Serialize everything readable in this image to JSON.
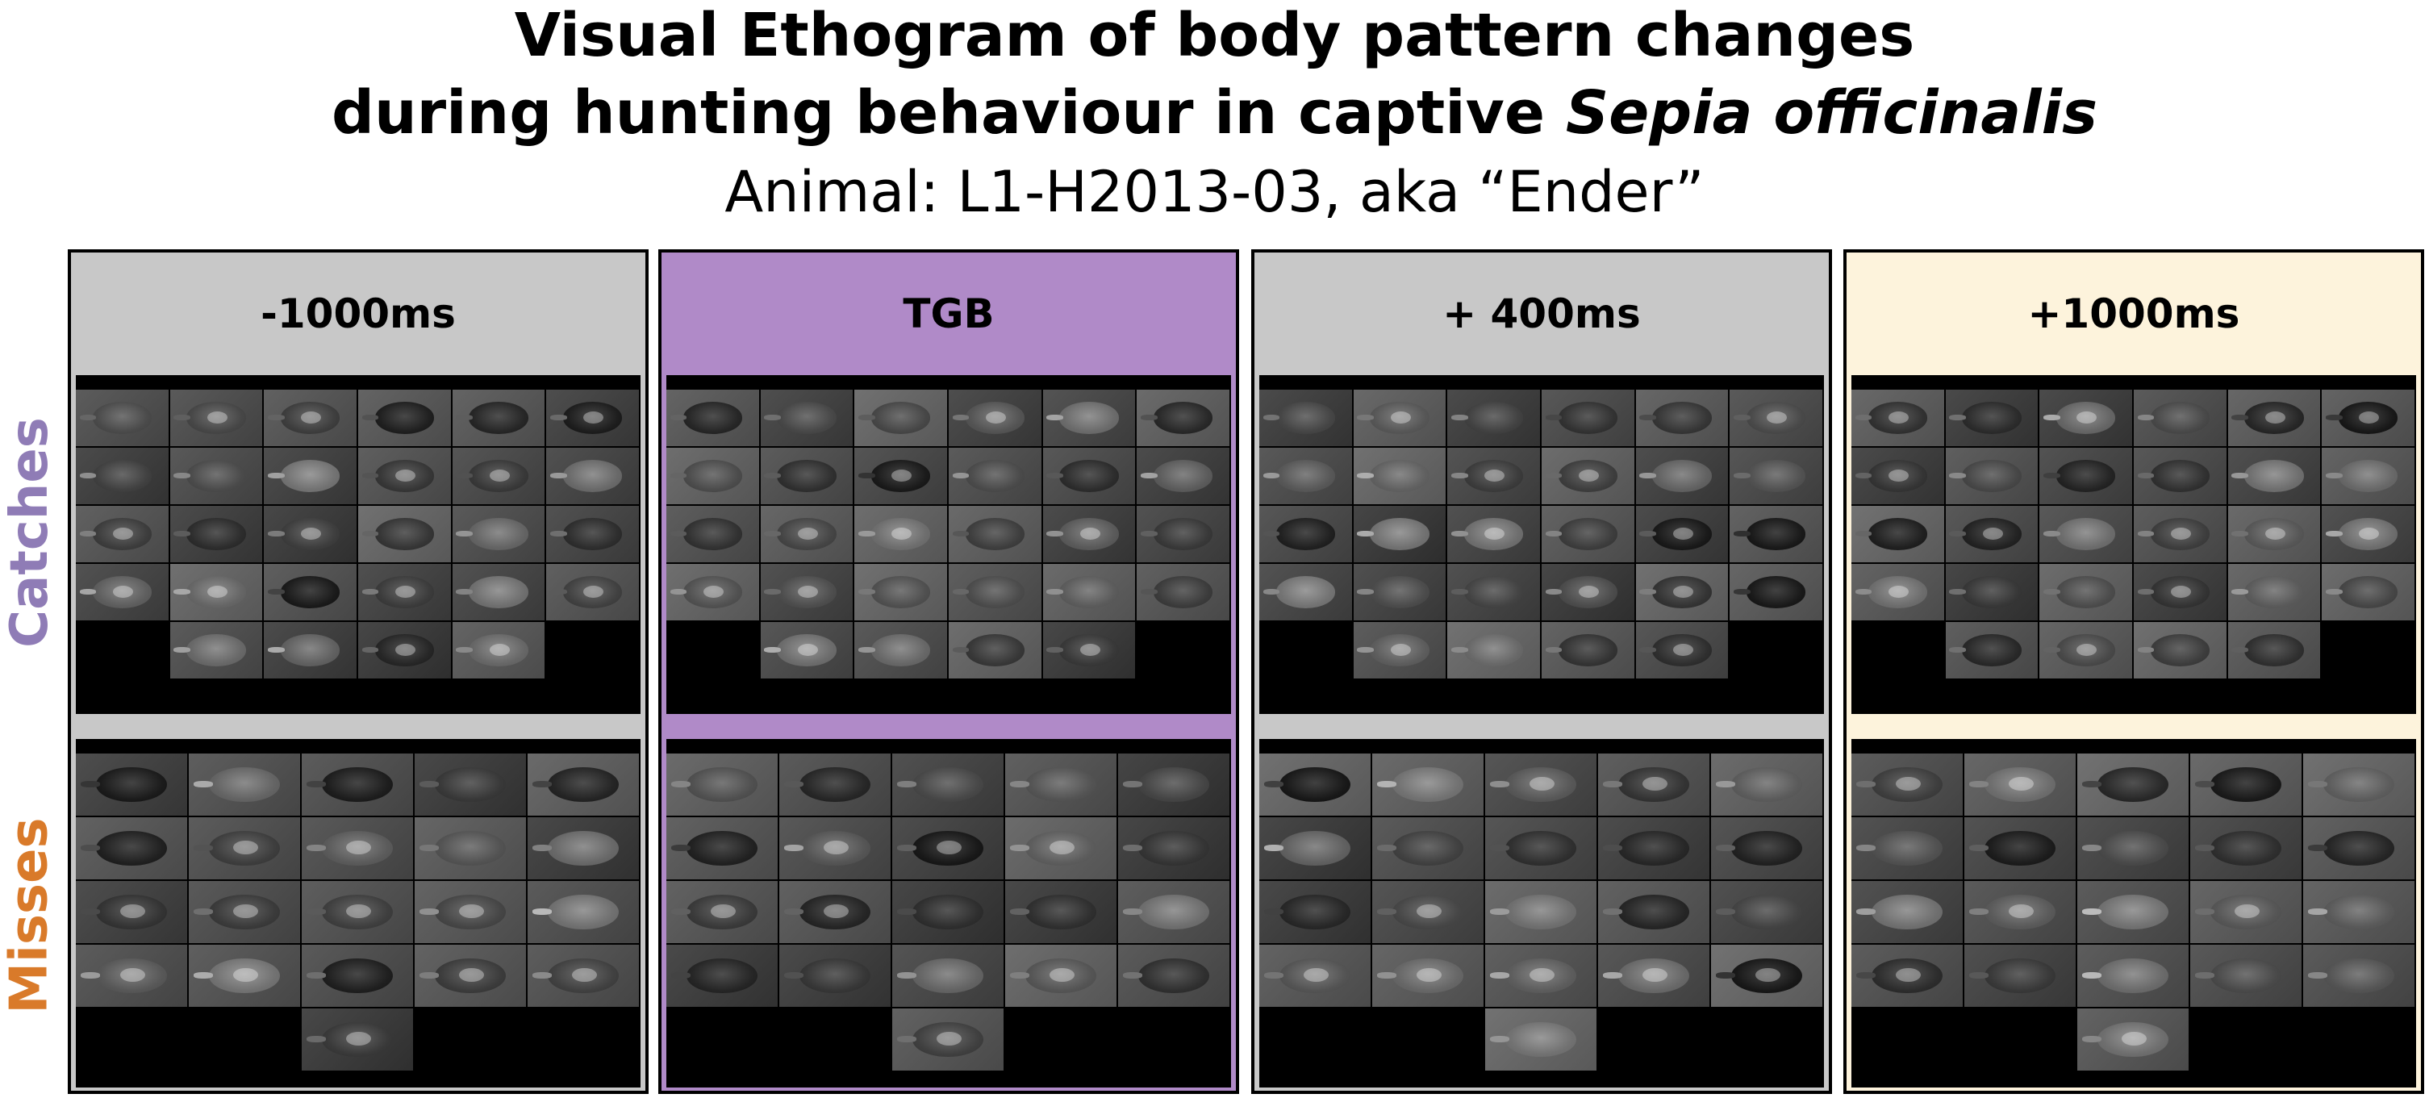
{
  "title": {
    "line1": "Visual Ethogram of body pattern changes",
    "line2_prefix": "during hunting behaviour in captive ",
    "line2_species": "Sepia officinalis",
    "subtitle": "Animal: L1-H2013-03, aka “Ender”"
  },
  "row_labels": {
    "catches": "Catches",
    "misses": "Misses"
  },
  "colors": {
    "catches_label": "#8f7cb6",
    "misses_label": "#d97a2a",
    "neutral_header": "#c8c8c8",
    "tgb_header": "#b08ac8",
    "late_header": "#fdf3dc"
  },
  "panels": [
    {
      "label": "-1000ms",
      "theme": "neutral"
    },
    {
      "label": "TGB",
      "theme": "tgb"
    },
    {
      "label": "+ 400ms",
      "theme": "neutral"
    },
    {
      "label": "+1000ms",
      "theme": "late"
    }
  ]
}
